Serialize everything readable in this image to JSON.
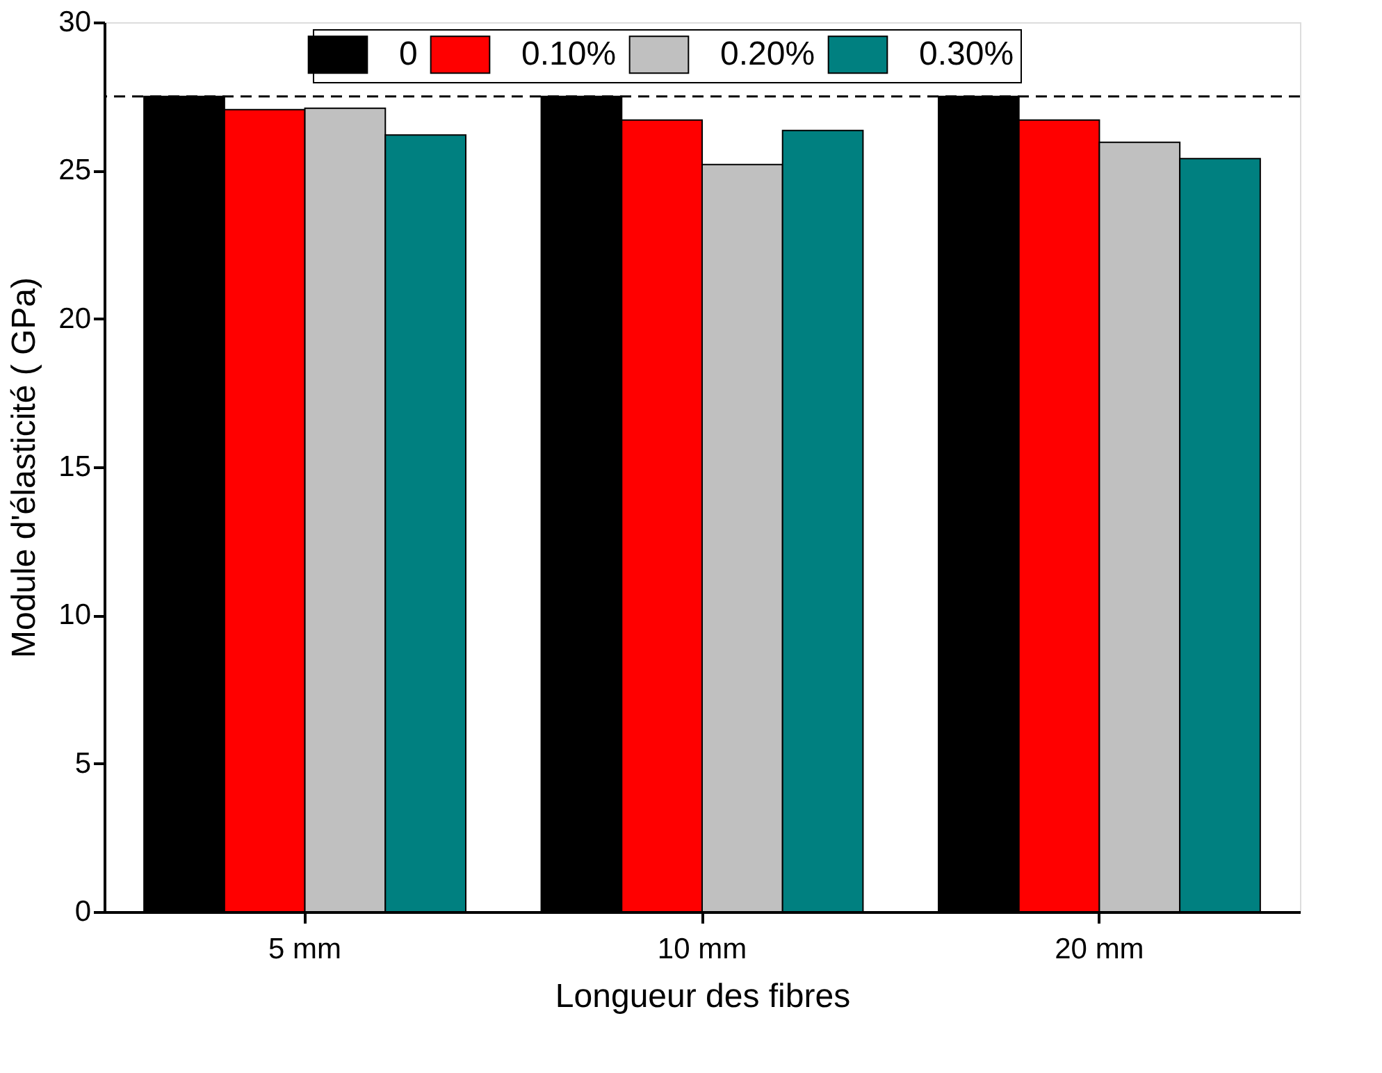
{
  "chart_data": {
    "type": "bar",
    "xlabel": "Longueur des fibres",
    "ylabel": "Module d'élasticité ( GPa)",
    "categories": [
      "5 mm",
      "10 mm",
      "20 mm"
    ],
    "series": [
      {
        "name": "0",
        "color": "#000000",
        "values": [
          27.5,
          27.5,
          27.5
        ]
      },
      {
        "name": "0.10%",
        "color": "#ff0000",
        "values": [
          27.05,
          26.7,
          26.7
        ]
      },
      {
        "name": "0.20%",
        "color": "#c0c0c0",
        "values": [
          27.1,
          25.2,
          25.95
        ]
      },
      {
        "name": "0.30%",
        "color": "#008080",
        "values": [
          26.2,
          26.35,
          25.4
        ]
      }
    ],
    "ylim": [
      0,
      30
    ],
    "yticks": [
      0,
      5,
      10,
      15,
      20,
      25,
      30
    ],
    "ref_lines": [
      {
        "axis": "y",
        "value": 27.5,
        "color": "#000000",
        "line_style": "dashed"
      }
    ],
    "legend": "top",
    "grid": false
  }
}
